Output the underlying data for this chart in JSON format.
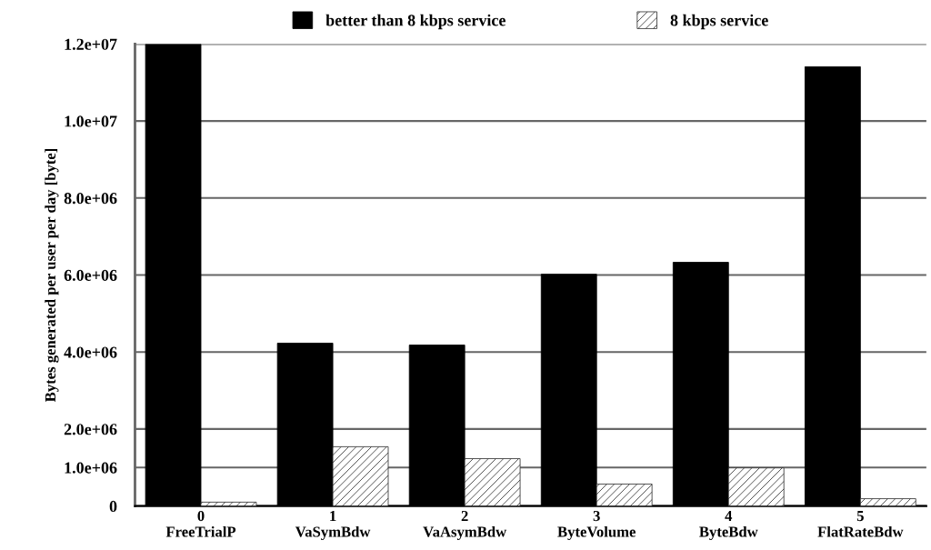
{
  "chart_data": {
    "type": "bar",
    "ylabel": "Bytes generated per user per day [byte]",
    "categories": [
      "0\nFreeTrialP",
      "1\nVaSymBdw",
      "2\nVaAsymBdw",
      "3\nByteVolume",
      "4\nByteBdw",
      "5\nFlatRateBdw"
    ],
    "series": [
      {
        "name": "better than 8 kbps service",
        "color": "#000000",
        "values": [
          12000000,
          4230000,
          4180000,
          6020000,
          6330000,
          11410000
        ]
      },
      {
        "name": "8 kbps service",
        "color": "#333333",
        "values": [
          100000,
          1540000,
          1230000,
          570000,
          990000,
          190000
        ]
      }
    ],
    "ylim": [
      0,
      12000000
    ],
    "yticks": [
      {
        "value": 0,
        "label": "0"
      },
      {
        "value": 1000000,
        "label": "1.0e+06"
      },
      {
        "value": 2000000,
        "label": "2.0e+06"
      },
      {
        "value": 4000000,
        "label": "4.0e+06"
      },
      {
        "value": 6000000,
        "label": "6.0e+06"
      },
      {
        "value": 8000000,
        "label": "8.0e+06"
      },
      {
        "value": 10000000,
        "label": "1.0e+07"
      },
      {
        "value": 12000000,
        "label": "1.2e+07"
      }
    ],
    "grid": "y",
    "legend": "top"
  }
}
